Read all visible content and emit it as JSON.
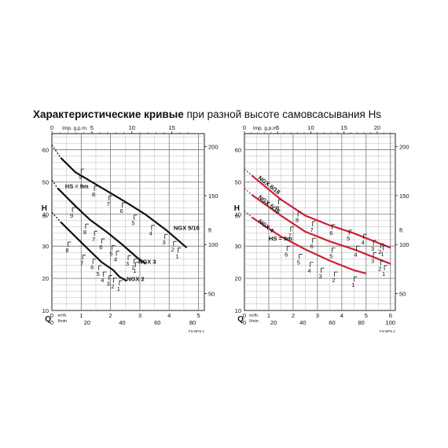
{
  "title": {
    "bold": "Характеристические кривые",
    "normal": " при разной высоте самовсасывания Hs"
  },
  "chart_data": [
    {
      "type": "line",
      "x_top": {
        "label": "Imp. g.p.m.",
        "ticks": [
          "0",
          "5",
          "10",
          "15"
        ]
      },
      "y_left": {
        "label": "H",
        "unit": "m",
        "ticks": [
          "10",
          "20",
          "30",
          "40",
          "50",
          "60"
        ],
        "range": [
          10,
          65
        ]
      },
      "y_right": {
        "unit": "ft",
        "ticks": [
          "50",
          "100",
          "150",
          "200"
        ]
      },
      "x_bottom_q": {
        "label": "Q",
        "unit": "m³/h",
        "ticks": [
          "0",
          "1",
          "2",
          "3",
          "4",
          "5"
        ],
        "range": [
          0,
          5.2
        ]
      },
      "x_bottom_l": {
        "unit": "l/min",
        "ticks": [
          "0",
          "20",
          "40",
          "60",
          "80"
        ]
      },
      "code": "FS.NPS.1",
      "hs_label": "HS = 9m",
      "series": [
        {
          "name": "NGX 5/16",
          "label_xy": [
            4.15,
            35
          ],
          "dash": [
            [
              0,
              61.5
            ],
            [
              0.3,
              57.5
            ]
          ],
          "points": [
            [
              0.3,
              57.5
            ],
            [
              0.8,
              53
            ],
            [
              1.8,
              47.6
            ],
            [
              2.5,
              43.8
            ],
            [
              3.2,
              39.8
            ],
            [
              3.9,
              35
            ],
            [
              4.6,
              29.5
            ]
          ],
          "ticks": [
            {
              "x": 1.0,
              "y": 52.5,
              "l": "9"
            },
            {
              "x": 1.45,
              "y": 47.2,
              "l": "8"
            },
            {
              "x": 1.95,
              "y": 44.2,
              "l": "7"
            },
            {
              "x": 2.4,
              "y": 42,
              "l": "6"
            },
            {
              "x": 2.8,
              "y": 38.2,
              "l": "5"
            },
            {
              "x": 3.4,
              "y": 35,
              "l": "4"
            },
            {
              "x": 3.85,
              "y": 32.2,
              "l": "3"
            },
            {
              "x": 4.15,
              "y": 30,
              "l": "2"
            },
            {
              "x": 4.3,
              "y": 28,
              "l": "1"
            }
          ]
        },
        {
          "name": "NGX 3",
          "label_xy": [
            2.95,
            24.5
          ],
          "dash": [
            [
              0,
              50.5
            ],
            [
              0.2,
              48
            ]
          ],
          "points": [
            [
              0.2,
              48
            ],
            [
              0.8,
              42.5
            ],
            [
              1.3,
              38.2
            ],
            [
              1.9,
              34.2
            ],
            [
              2.4,
              30.5
            ],
            [
              2.9,
              26.5
            ],
            [
              3.2,
              24.5
            ]
          ],
          "ticks": [
            {
              "x": 0.7,
              "y": 40.5,
              "l": "9"
            },
            {
              "x": 1.15,
              "y": 35.4,
              "l": "8"
            },
            {
              "x": 1.45,
              "y": 33.2,
              "l": "7"
            },
            {
              "x": 1.7,
              "y": 30.8,
              "l": "6"
            },
            {
              "x": 2.05,
              "y": 28.7,
              "l": "5"
            },
            {
              "x": 2.2,
              "y": 27,
              "l": "4"
            },
            {
              "x": 2.6,
              "y": 25.6,
              "l": "3"
            },
            {
              "x": 2.8,
              "y": 24.5,
              "l": "2"
            },
            {
              "x": 2.85,
              "y": 23.5,
              "l": "1"
            }
          ]
        },
        {
          "name": "NGX 2",
          "label_xy": [
            2.55,
            19.2
          ],
          "dash": [
            [
              0,
              40.5
            ],
            [
              0.3,
              37.5
            ]
          ],
          "points": [
            [
              0.3,
              37.5
            ],
            [
              0.8,
              33
            ],
            [
              1.3,
              28.5
            ],
            [
              1.7,
              25
            ],
            [
              2.1,
              22.5
            ],
            [
              2.3,
              20.5
            ],
            [
              2.55,
              19.2
            ]
          ],
          "ticks": [
            {
              "x": 0.55,
              "y": 29.8,
              "l": "8"
            },
            {
              "x": 1.05,
              "y": 25.8,
              "l": "7"
            },
            {
              "x": 1.4,
              "y": 24.5,
              "l": "6"
            },
            {
              "x": 1.6,
              "y": 22.5,
              "l": "5"
            },
            {
              "x": 1.75,
              "y": 20.5,
              "l": "4"
            },
            {
              "x": 1.95,
              "y": 19.4,
              "l": "3"
            },
            {
              "x": 2.1,
              "y": 18.6,
              "l": "2"
            },
            {
              "x": 2.3,
              "y": 17.8,
              "l": "1"
            }
          ]
        }
      ],
      "hs_anchor": [
        0.45,
        48
      ]
    },
    {
      "type": "line",
      "x_top": {
        "label": "Imp. g.p.m.",
        "ticks": [
          "0",
          "5",
          "10",
          "15",
          "20"
        ]
      },
      "y_left": {
        "label": "H",
        "unit": "m",
        "ticks": [
          "10",
          "20",
          "30",
          "40",
          "50",
          "60"
        ],
        "range": [
          10,
          65
        ]
      },
      "y_right": {
        "unit": "ft",
        "ticks": [
          "50",
          "100",
          "150",
          "200"
        ]
      },
      "x_bottom_q": {
        "label": "Q",
        "unit": "m³/h",
        "ticks": [
          "0",
          "1",
          "2",
          "3",
          "4",
          "5",
          "6"
        ],
        "range": [
          0,
          6.2
        ]
      },
      "x_bottom_l": {
        "unit": "l/min",
        "ticks": [
          "0",
          "20",
          "40",
          "60",
          "80",
          "100"
        ]
      },
      "code": "FS.NPS.1",
      "hs_label": "HS = 9m",
      "series": [
        {
          "name": "NGX 6/18",
          "label_xy": [
            0.55,
            51
          ],
          "dash": [
            [
              0,
              54
            ],
            [
              0.3,
              52
            ]
          ],
          "points": [
            [
              0.3,
              52
            ],
            [
              1.5,
              44.5
            ],
            [
              2.5,
              39.5
            ],
            [
              3.5,
              36.5
            ],
            [
              4.5,
              34
            ],
            [
              5.5,
              31
            ],
            [
              6,
              29.5
            ]
          ],
          "ticks": [
            {
              "x": 1.4,
              "y": 43,
              "l": "9"
            },
            {
              "x": 2.2,
              "y": 39.2,
              "l": "8"
            },
            {
              "x": 2.8,
              "y": 36.2,
              "l": "7"
            },
            {
              "x": 3.6,
              "y": 35.2,
              "l": "6"
            },
            {
              "x": 4.3,
              "y": 33.5,
              "l": "5"
            },
            {
              "x": 4.9,
              "y": 32.2,
              "l": "4"
            },
            {
              "x": 5.3,
              "y": 30.3,
              "l": "3"
            },
            {
              "x": 5.6,
              "y": 29.3,
              "l": "2"
            },
            {
              "x": 5.7,
              "y": 28.7,
              "l": "1"
            }
          ]
        },
        {
          "name": "NGX 5/16",
          "label_xy": [
            0.55,
            45
          ],
          "dash": [
            [
              0,
              48
            ],
            [
              0.3,
              46
            ]
          ],
          "points": [
            [
              0.3,
              46
            ],
            [
              1.5,
              39.5
            ],
            [
              2.5,
              34.5
            ],
            [
              3.5,
              31.5
            ],
            [
              4.5,
              29
            ],
            [
              5.5,
              26
            ],
            [
              6,
              24.5
            ]
          ],
          "ticks": [
            {
              "x": 1.9,
              "y": 34.5,
              "l": "7"
            },
            {
              "x": 2.8,
              "y": 31,
              "l": "6"
            },
            {
              "x": 3.6,
              "y": 28,
              "l": "5"
            },
            {
              "x": 4.6,
              "y": 28.5,
              "l": "4"
            },
            {
              "x": 5.3,
              "y": 26.5,
              "l": "3"
            },
            {
              "x": 5.6,
              "y": 24,
              "l": "2"
            },
            {
              "x": 5.75,
              "y": 22.5,
              "l": "1"
            }
          ]
        },
        {
          "name": "NGX 4",
          "label_xy": [
            0.55,
            37.5
          ],
          "dash": [
            [
              0,
              41
            ],
            [
              0.3,
              39
            ]
          ],
          "points": [
            [
              0.3,
              39
            ],
            [
              1.5,
              33
            ],
            [
              2.5,
              29
            ],
            [
              3.5,
              25.5
            ],
            [
              4.5,
              22.5
            ],
            [
              5,
              21.5
            ]
          ],
          "ticks": [
            {
              "x": 1.75,
              "y": 28.5,
              "l": "6"
            },
            {
              "x": 2.25,
              "y": 26,
              "l": "5"
            },
            {
              "x": 2.7,
              "y": 23.5,
              "l": "4"
            },
            {
              "x": 3.15,
              "y": 21.7,
              "l": "3"
            },
            {
              "x": 3.7,
              "y": 20.5,
              "l": "2"
            },
            {
              "x": 4.5,
              "y": 19,
              "l": "1"
            }
          ]
        }
      ],
      "hs_anchor": [
        1.0,
        31.8
      ]
    }
  ]
}
